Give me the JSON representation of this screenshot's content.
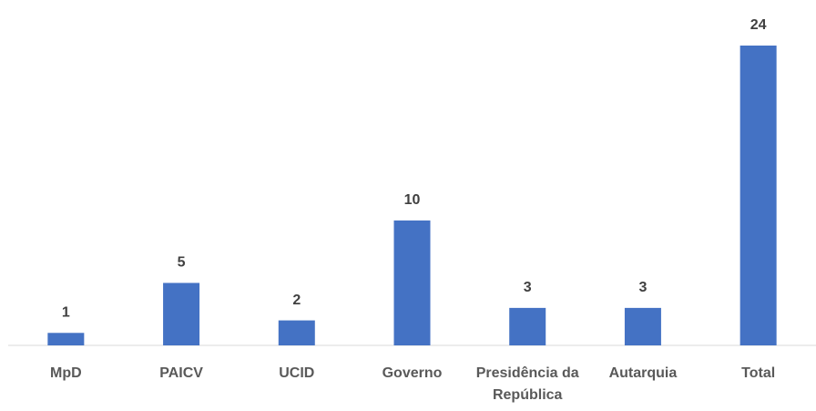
{
  "chart_data": {
    "type": "bar",
    "categories": [
      "MpD",
      "PAICV",
      "UCID",
      "Governo",
      "Presidência da República",
      "Autarquia",
      "Total"
    ],
    "values": [
      1,
      5,
      2,
      10,
      3,
      3,
      24
    ],
    "color": "#4472c4"
  }
}
